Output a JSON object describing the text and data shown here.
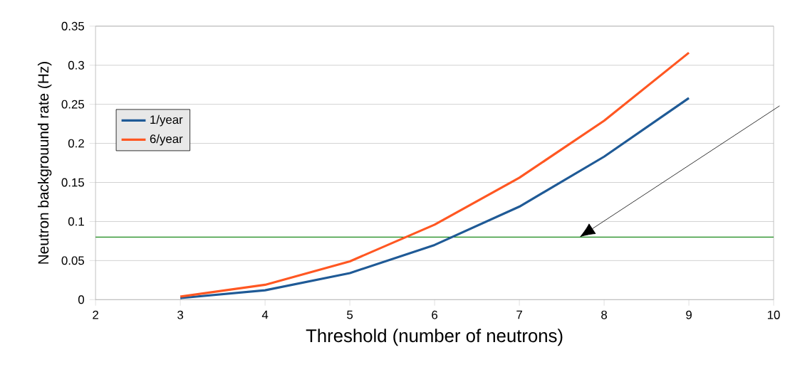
{
  "chart_data": {
    "type": "line",
    "xlabel": "Threshold (number of neutrons)",
    "ylabel": "Neutron backgrouund rate (Hz)",
    "x": [
      3,
      4,
      5,
      6,
      7,
      8,
      9
    ],
    "series": [
      {
        "name": "1/year",
        "color": "#1f5a96",
        "values": [
          0.002,
          0.012,
          0.034,
          0.07,
          0.119,
          0.183,
          0.258
        ]
      },
      {
        "name": "6/year",
        "color": "#ff5722",
        "values": [
          0.004,
          0.019,
          0.049,
          0.096,
          0.156,
          0.229,
          0.316
        ]
      }
    ],
    "xlim": [
      2,
      10
    ],
    "xticks": [
      2,
      3,
      4,
      5,
      6,
      7,
      8,
      9,
      10
    ],
    "ylim": [
      0,
      0.35
    ],
    "yticks": [
      0,
      0.05,
      0.1,
      0.15,
      0.2,
      0.25,
      0.3,
      0.35
    ],
    "ref_lines": [
      {
        "axis": "y",
        "value": 0.08,
        "color": "#1a8a1a"
      }
    ],
    "grid": "y",
    "legend": "left",
    "marker": "none",
    "line_style": "solid"
  }
}
